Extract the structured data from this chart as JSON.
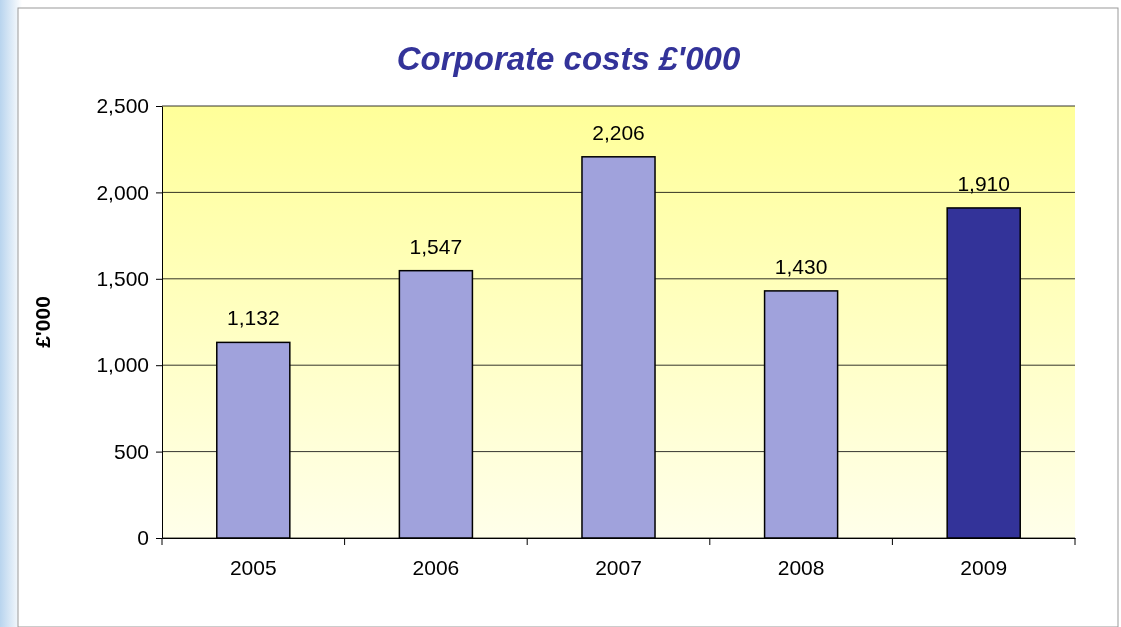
{
  "chart_data": {
    "type": "bar",
    "title": "Corporate costs £'000",
    "ylabel": "£'000",
    "categories": [
      "2005",
      "2006",
      "2007",
      "2008",
      "2009"
    ],
    "values": [
      1132,
      1547,
      2206,
      1430,
      1910
    ],
    "colors": [
      "#a0a2dc",
      "#a0a2dc",
      "#a0a2dc",
      "#a0a2dc",
      "#333399"
    ],
    "ylim": [
      0,
      2500
    ],
    "yticks": [
      0,
      {
        "value": 500,
        "label": "500"
      },
      {
        "value": 1000,
        "label": "1,000"
      },
      {
        "value": 1500,
        "label": "1,500"
      },
      {
        "value": 2000,
        "label": "2,000"
      },
      {
        "value": 2500,
        "label": "2,500"
      }
    ],
    "value_labels": [
      "1,132",
      "1,547",
      "2,206",
      "1,430",
      "1,910"
    ],
    "grid": "y"
  }
}
